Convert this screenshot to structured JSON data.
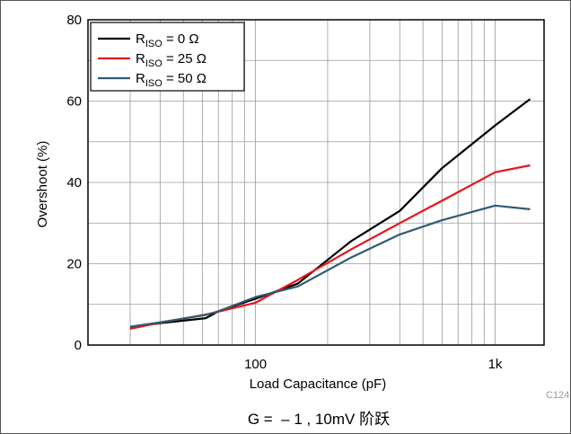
{
  "chart_data": {
    "type": "line",
    "caption": "G =  – 1 , 10mV 阶跃",
    "code": "C124",
    "xlabel": "Load Capacitance (pF)",
    "ylabel": "Overshoot (%)",
    "xscale": "log",
    "xlim": [
      20,
      1600
    ],
    "ylim": [
      0,
      80
    ],
    "x_ticks": [
      {
        "value": 100,
        "label": "100"
      },
      {
        "value": 1000,
        "label": "1k"
      }
    ],
    "y_ticks": [
      0,
      20,
      40,
      60,
      80
    ],
    "grid": true,
    "legend_position": "top-left",
    "series": [
      {
        "name_main": "R",
        "name_sub": "ISO",
        "name_rest": " = 0 Ω",
        "color": "#000000",
        "x": [
          30,
          40,
          62,
          70,
          100,
          150,
          250,
          400,
          600,
          1000,
          1400
        ],
        "y": [
          4.4,
          5.4,
          6.6,
          8.3,
          11.4,
          15.1,
          25.5,
          33.0,
          43.5,
          54.0,
          60.5
        ]
      },
      {
        "name_main": "R",
        "name_sub": "ISO",
        "name_rest": " = 25 Ω",
        "color": "#e8151b",
        "x": [
          30,
          40,
          62,
          70,
          100,
          150,
          250,
          400,
          600,
          1000,
          1400
        ],
        "y": [
          4.0,
          5.5,
          7.5,
          8.2,
          10.4,
          16.0,
          23.5,
          30.0,
          35.5,
          42.5,
          44.2
        ]
      },
      {
        "name_main": "R",
        "name_sub": "ISO",
        "name_rest": " = 50 Ω",
        "color": "#2f5b73",
        "x": [
          30,
          40,
          62,
          70,
          100,
          150,
          250,
          400,
          600,
          1000,
          1400
        ],
        "y": [
          4.5,
          5.6,
          7.4,
          8.3,
          11.8,
          14.4,
          21.5,
          27.2,
          30.7,
          34.3,
          33.4
        ]
      }
    ]
  }
}
